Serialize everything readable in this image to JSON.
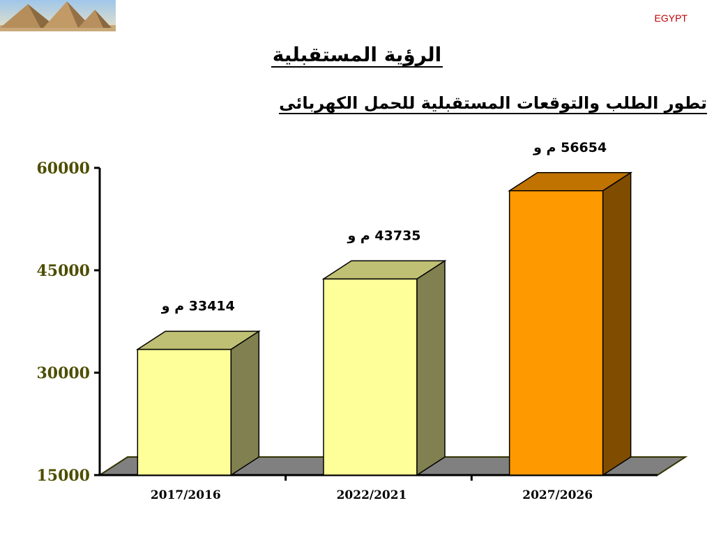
{
  "header": {
    "brand": "EGYPT",
    "logo_icon": "pyramids-image"
  },
  "title": "الرؤية المستقبلية",
  "subtitle": "تطور الطلب والتوقعات المستقبلية للحمل الكهربائى",
  "chart_data": {
    "type": "bar",
    "style": "3d",
    "categories": [
      "2017/2016",
      "2022/2021",
      "2027/2026"
    ],
    "values": [
      33414,
      43735,
      56654
    ],
    "data_labels": [
      "33414 م و",
      "43735 م و",
      "56654 م و"
    ],
    "ylim": [
      15000,
      60000
    ],
    "yticks": [
      "15000",
      "30000",
      "45000",
      "60000"
    ],
    "ytick_values": [
      15000,
      30000,
      45000,
      60000
    ],
    "grid": false,
    "legend": false,
    "colors": {
      "bar_front": [
        "#ffff99",
        "#ffff99",
        "#ff9900"
      ],
      "bar_side": [
        "#808050",
        "#808050",
        "#804d00"
      ],
      "bar_top": [
        "#c0c075",
        "#c0c075",
        "#c07300"
      ],
      "axis_text": "#4d4d00",
      "floor": "#808080"
    }
  }
}
